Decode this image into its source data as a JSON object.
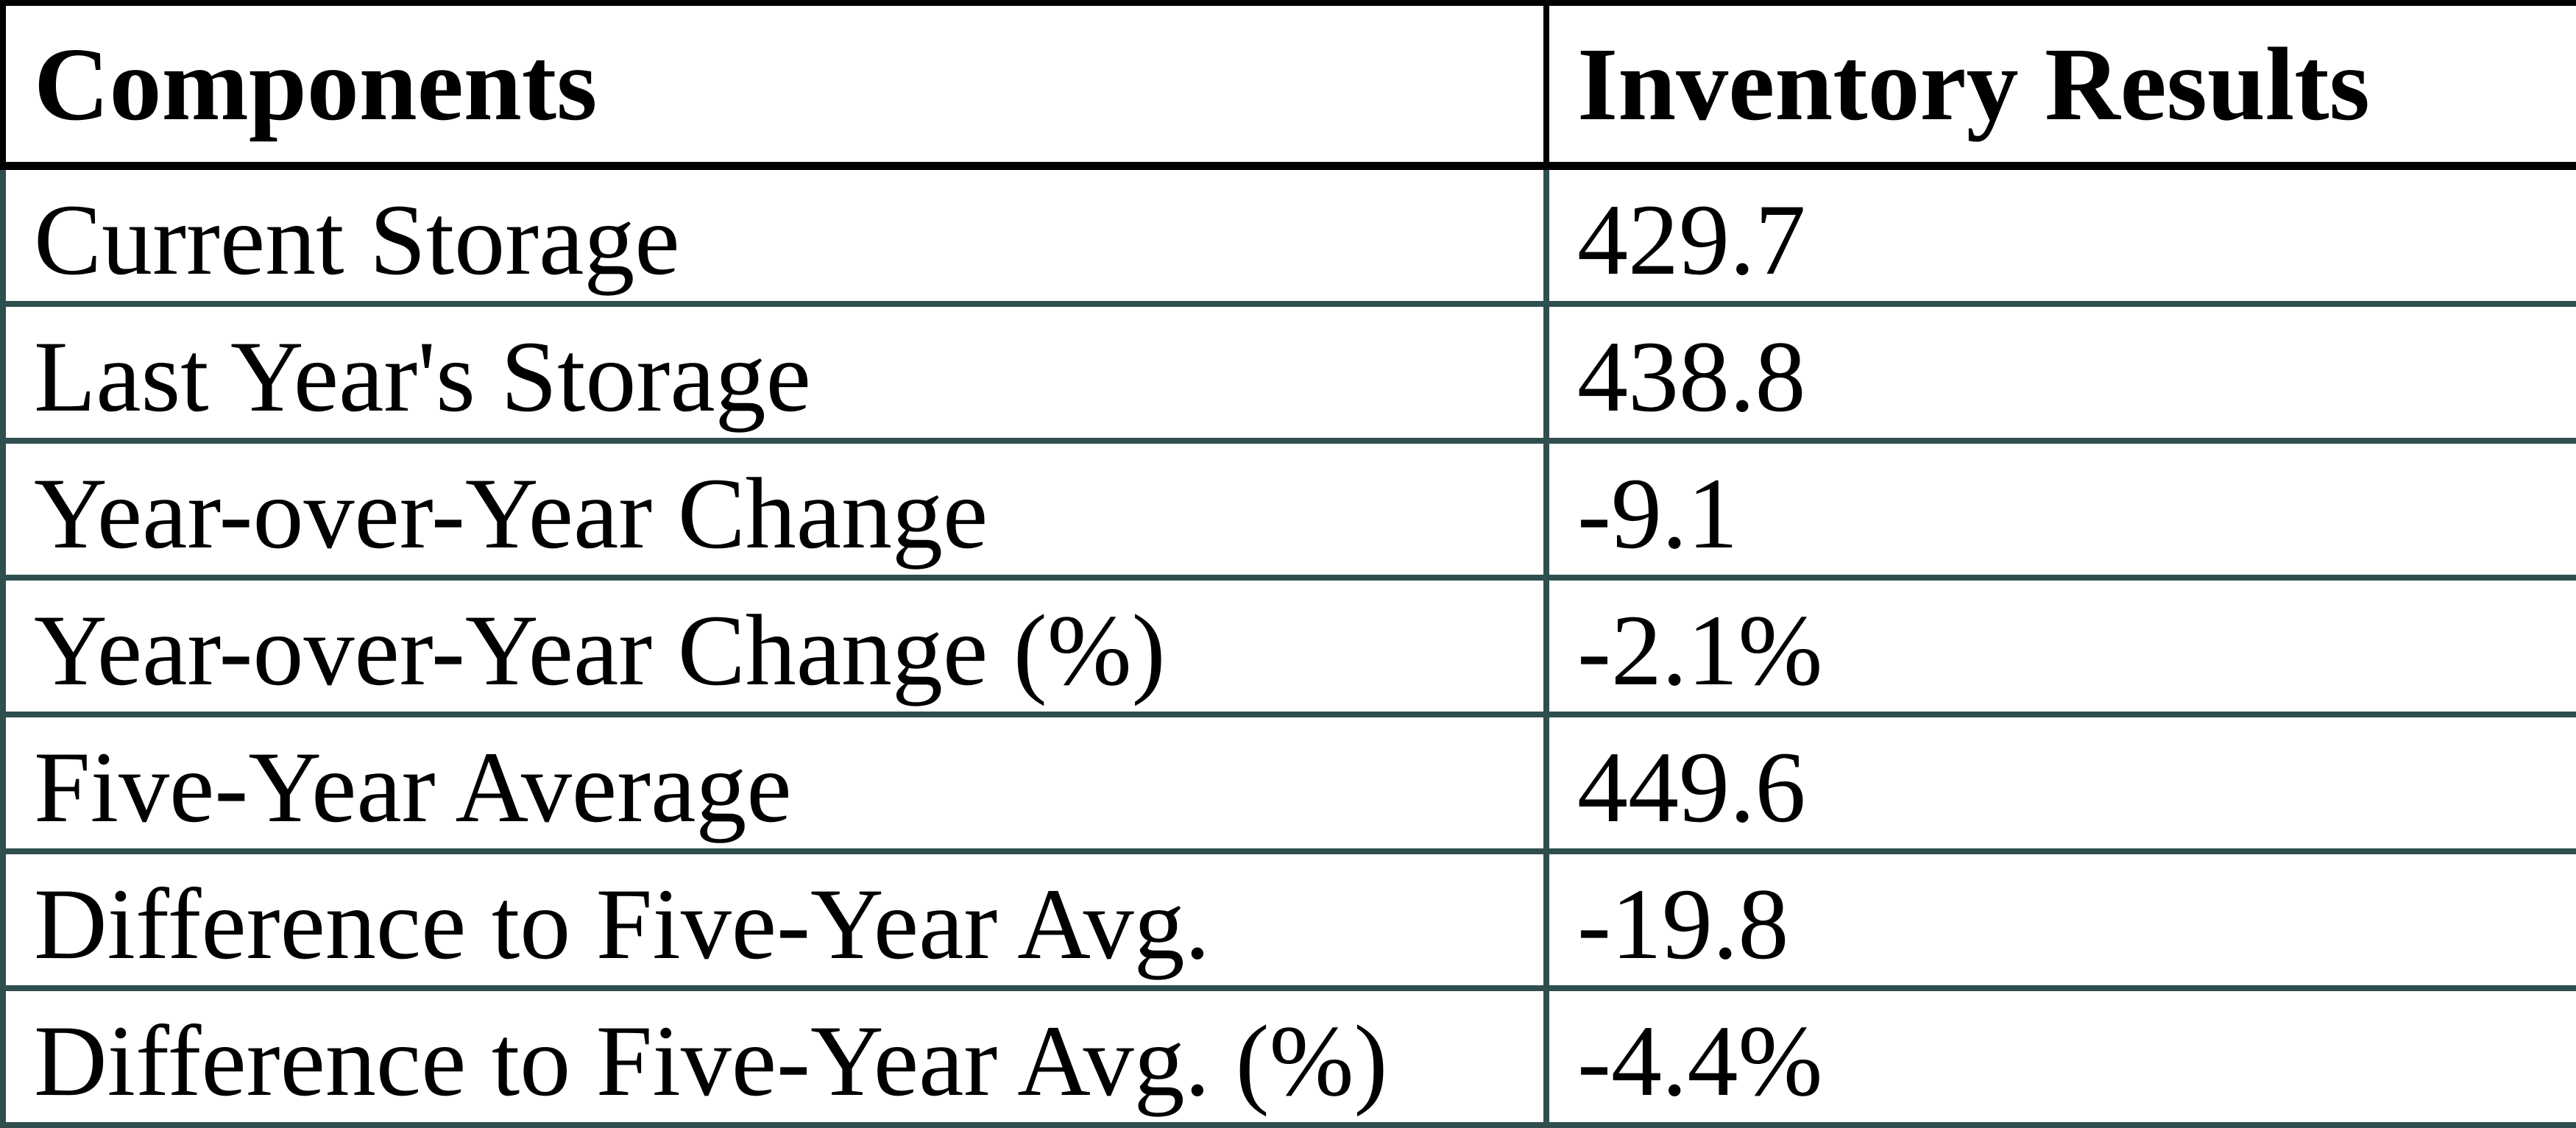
{
  "table": {
    "columns": [
      {
        "label": "Components"
      },
      {
        "label": "Inventory Results"
      }
    ],
    "rows": [
      {
        "label": "Current Storage",
        "value": "429.7"
      },
      {
        "label": "Last Year's Storage",
        "value": "438.8"
      },
      {
        "label": "Year-over-Year Change",
        "value": "-9.1"
      },
      {
        "label": "Year-over-Year Change (%)",
        "value": "-2.1%"
      },
      {
        "label": "Five-Year Average",
        "value": "449.6"
      },
      {
        "label": "Difference to Five-Year Avg.",
        "value": "-19.8"
      },
      {
        "label": "Difference to Five-Year Avg. (%)",
        "value": "-4.4%"
      }
    ],
    "colors": {
      "header_border": "#000000",
      "body_border": "#2F4F4F",
      "text": "#000000",
      "background": "#FFFFFF"
    }
  },
  "chart_data": {
    "type": "table",
    "title": "",
    "categories": [
      "Current Storage",
      "Last Year's Storage",
      "Year-over-Year Change",
      "Year-over-Year Change (%)",
      "Five-Year Average",
      "Difference to Five-Year Avg.",
      "Difference to Five-Year Avg. (%)"
    ],
    "series": [
      {
        "name": "Inventory Results",
        "values": [
          429.7,
          438.8,
          -9.1,
          -2.1,
          449.6,
          -19.8,
          -4.4
        ]
      }
    ],
    "value_display": [
      "429.7",
      "438.8",
      "-9.1",
      "-2.1%",
      "449.6",
      "-19.8",
      "-4.4%"
    ]
  }
}
